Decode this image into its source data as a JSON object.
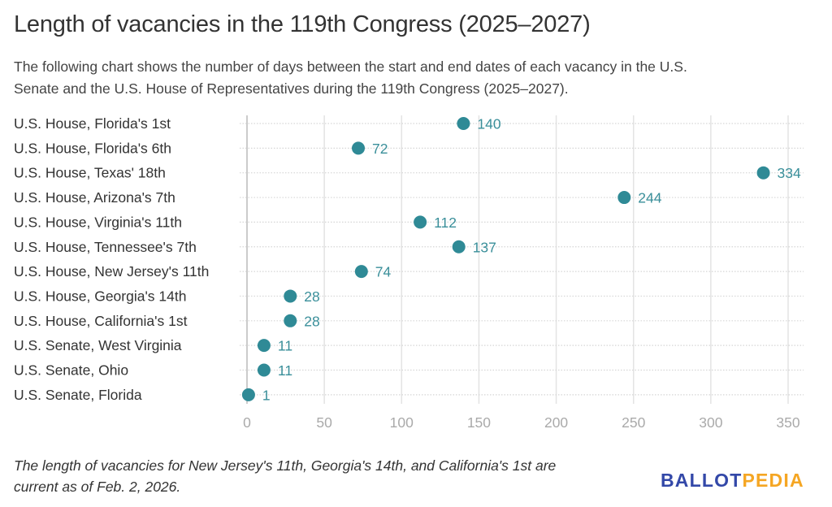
{
  "header": {
    "title": "Length of vacancies in the 119th Congress (2025–2027)",
    "subtitle_lines": [
      "The following chart shows the number of days between the start and end dates of each vacancy in the U.S.",
      "Senate and the U.S. House of Representatives during the 119th Congress (2025–2027)."
    ]
  },
  "footer": {
    "note_lines": [
      "The length of vacancies for New Jersey's 11th, Georgia's 14th, and California's 1st are",
      "current as of Feb. 2, 2026."
    ],
    "logo_part1": "BALLOT",
    "logo_part2": "PEDIA"
  },
  "colors": {
    "dot": "#2f8a96",
    "label": "#3a8f9a",
    "logo_blue": "#3348a8",
    "logo_orange": "#f5a623"
  },
  "chart_data": {
    "type": "scatter",
    "title": "Length of vacancies in the 119th Congress (2025–2027)",
    "xlabel": "",
    "ylabel": "",
    "xlim": [
      0,
      350
    ],
    "xticks": [
      0,
      50,
      100,
      150,
      200,
      250,
      300,
      350
    ],
    "xtick_labels": [
      "0",
      "50",
      "100",
      "150",
      "200",
      "250",
      "300",
      "350"
    ],
    "grid": true,
    "categories": [
      "U.S. House, Florida's 1st",
      "U.S. House, Florida's 6th",
      "U.S. House, Texas' 18th",
      "U.S. House, Arizona's 7th",
      "U.S. House, Virginia's 11th",
      "U.S. House, Tennessee's 7th",
      "U.S. House, New Jersey's 11th",
      "U.S. House, Georgia's 14th",
      "U.S. House, California's 1st",
      "U.S. Senate, West Virginia",
      "U.S. Senate, Ohio",
      "U.S. Senate, Florida"
    ],
    "values": [
      140,
      72,
      334,
      244,
      112,
      137,
      74,
      28,
      28,
      11,
      11,
      1
    ],
    "data_labels": [
      "140",
      "72",
      "334",
      "244",
      "112",
      "137",
      "74",
      "28",
      "28",
      "11",
      "11",
      "1"
    ]
  }
}
